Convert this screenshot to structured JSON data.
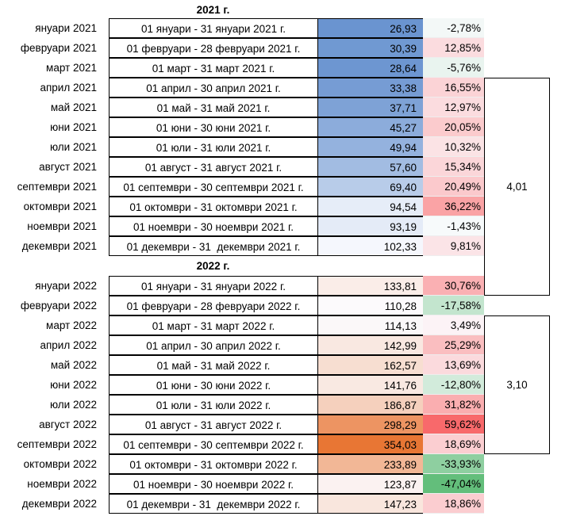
{
  "sections": [
    {
      "title": "2021 г.",
      "rows": [
        {
          "month": "януари 2021",
          "period": "01 януари - 31 януари 2021 г.",
          "value": "26,93",
          "change": "-2,78%"
        },
        {
          "month": "февруари 2021",
          "period": "01 февруари - 28 февруари 2021 г.",
          "value": "30,39",
          "change": "12,85%"
        },
        {
          "month": "март 2021",
          "period": "01 март - 31 март 2021 г.",
          "value": "28,64",
          "change": "-5,76%"
        },
        {
          "month": "април 2021",
          "period": "01 април - 30 април 2021 г.",
          "value": "33,38",
          "change": "16,55%"
        },
        {
          "month": "май 2021",
          "period": "01 май - 31 май 2021 г.",
          "value": "37,71",
          "change": "12,97%"
        },
        {
          "month": "юни 2021",
          "period": "01 юни - 30 юни 2021 г.",
          "value": "45,27",
          "change": "20,05%"
        },
        {
          "month": "юли 2021",
          "period": "01 юли - 31 юли 2021 г.",
          "value": "49,94",
          "change": "10,32%"
        },
        {
          "month": "август 2021",
          "period": "01 август - 31 август 2021 г.",
          "value": "57,60",
          "change": "15,34%"
        },
        {
          "month": "септември 2021",
          "period": "01 септември - 30 септември 2021 г.",
          "value": "69,40",
          "change": "20,49%"
        },
        {
          "month": "октомври 2021",
          "period": "01 октомври - 31 октомври 2021 г.",
          "value": "94,54",
          "change": "36,22%"
        },
        {
          "month": "ноември 2021",
          "period": "01 ноември - 30 ноември 2021 г.",
          "value": "93,19",
          "change": "-1,43%"
        },
        {
          "month": "декември 2021",
          "period": "01 декември - 31  декември 2021 г.",
          "value": "102,33",
          "change": "9,81%"
        }
      ]
    },
    {
      "title": "2022 г.",
      "rows": [
        {
          "month": "януари 2022",
          "period": "01 януари - 31 януари 2022 г.",
          "value": "133,81",
          "change": "30,76%"
        },
        {
          "month": "февруари 2022",
          "period": "01 февруари - 28 февруари 2022 г.",
          "value": "110,28",
          "change": "-17,58%"
        },
        {
          "month": "март 2022",
          "period": "01 март - 31 март 2022 г.",
          "value": "114,13",
          "change": "3,49%"
        },
        {
          "month": "април 2022",
          "period": "01 април - 30 април 2022 г.",
          "value": "142,99",
          "change": "25,29%"
        },
        {
          "month": "май 2022",
          "period": "01 май - 31 май 2022 г.",
          "value": "162,57",
          "change": "13,69%"
        },
        {
          "month": "юни 2022",
          "period": "01 юни - 30 юни 2022 г.",
          "value": "141,76",
          "change": "-12,80%"
        },
        {
          "month": "юли 2022",
          "period": "01 юли - 31 юли 2022 г.",
          "value": "186,87",
          "change": "31,82%"
        },
        {
          "month": "август 2022",
          "period": "01 август - 31 август 2022 г.",
          "value": "298,29",
          "change": "59,62%"
        },
        {
          "month": "септември 2022",
          "period": "01 септември - 30 септември 2022 г.",
          "value": "354,03",
          "change": "18,69%"
        },
        {
          "month": "октомври 2022",
          "period": "01 октомври - 31 октомври 2022 г.",
          "value": "233,89",
          "change": "-33,93%"
        },
        {
          "month": "ноември 2022",
          "period": "01 ноември - 30 ноември 2022 г.",
          "value": "123,87",
          "change": "-47,04%"
        },
        {
          "month": "декември 2022",
          "period": "01 декември - 31  декември 2022 г.",
          "value": "147,23",
          "change": "18,86%"
        }
      ]
    }
  ],
  "brackets": [
    {
      "label": "4,01"
    },
    {
      "label": "3,10"
    }
  ]
}
